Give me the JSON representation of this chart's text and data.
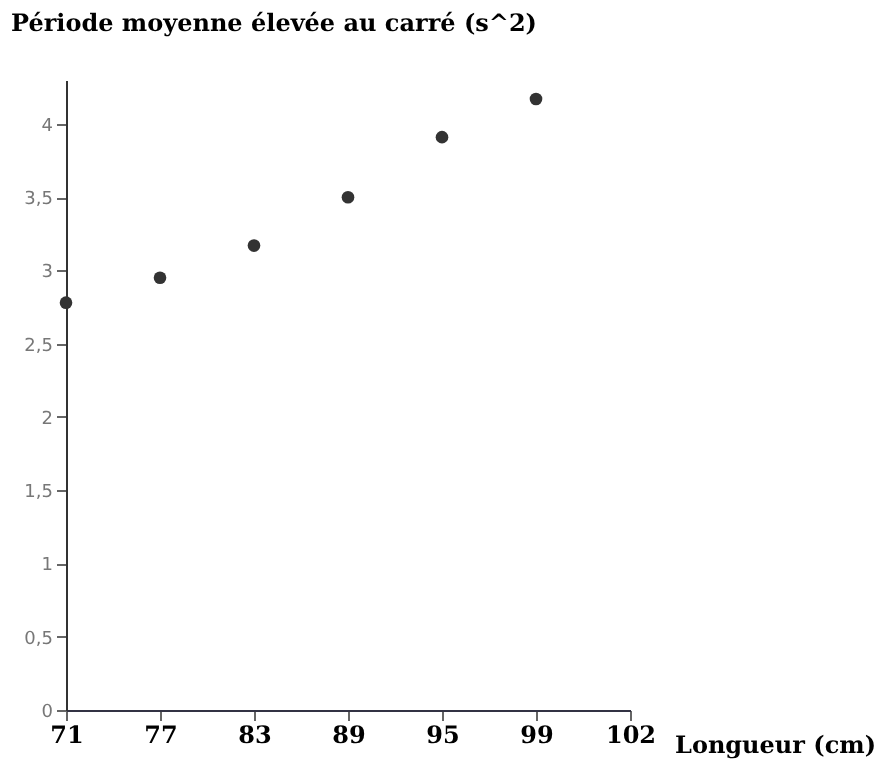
{
  "chart_data": {
    "type": "scatter",
    "ylabel": "Période moyenne élevée au carré (s^2)",
    "xlabel": "Longueur (cm)",
    "categories": [
      "71",
      "77",
      "83",
      "89",
      "95",
      "99",
      "102"
    ],
    "series": [
      {
        "color": "#333333",
        "values": [
          2.78,
          2.95,
          3.17,
          3.5,
          3.91,
          4.17,
          null
        ]
      }
    ],
    "ylim": [
      0,
      4.3
    ],
    "yticks": [
      0,
      {
        "value": 0.5,
        "label": "0,5"
      },
      1,
      {
        "value": 1.5,
        "label": "1,5"
      },
      2,
      {
        "value": 2.5,
        "label": "2,5"
      },
      3,
      {
        "value": 3.5,
        "label": "3,5"
      },
      4
    ],
    "grid": false
  }
}
